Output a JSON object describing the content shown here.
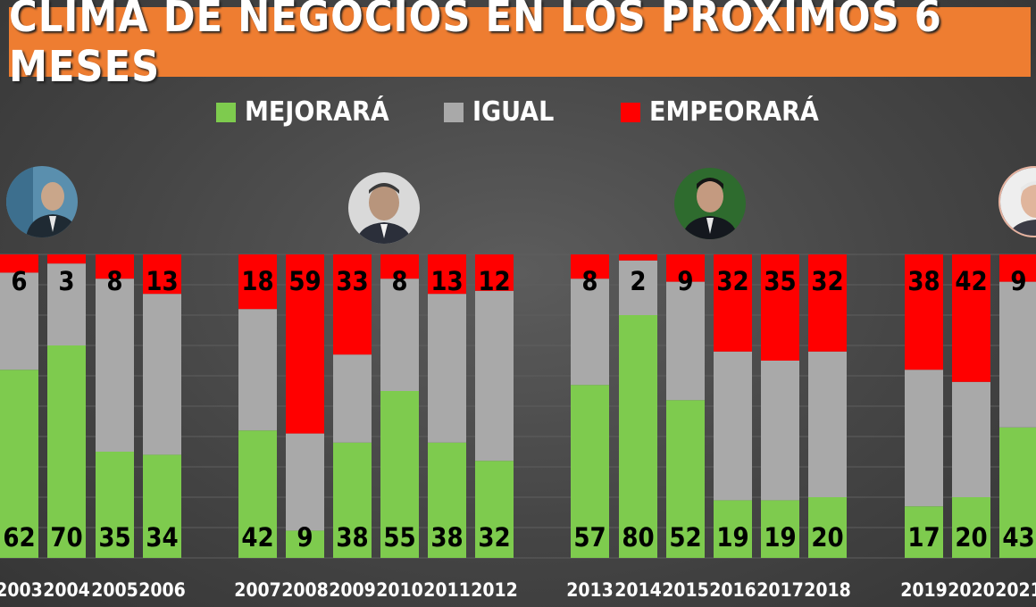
{
  "title": "CLIMA DE NEGOCIOS EN LOS PRÓXIMOS 6 MESES",
  "colors": {
    "mejorara": "#7ecb4e",
    "igual": "#a9a9a9",
    "empeorara": "#ff0000",
    "title_bg": "#ee7d31"
  },
  "chart_data": {
    "type": "bar",
    "stacked": true,
    "legend_position": "top-center",
    "categories": [
      "2003",
      "2004",
      "2005",
      "2006",
      "2007",
      "2008",
      "2009",
      "2010",
      "2011",
      "2012",
      "2013",
      "2014",
      "2015",
      "2016",
      "2017",
      "2018",
      "2019",
      "2020",
      "2021"
    ],
    "series": [
      {
        "name": "MEJORARÁ",
        "values": [
          62,
          70,
          35,
          34,
          42,
          9,
          38,
          55,
          38,
          32,
          57,
          80,
          52,
          19,
          19,
          20,
          17,
          20,
          43
        ]
      },
      {
        "name": "IGUAL",
        "values": [
          32,
          27,
          57,
          53,
          40,
          32,
          29,
          37,
          49,
          56,
          35,
          18,
          39,
          49,
          46,
          48,
          45,
          38,
          48
        ]
      },
      {
        "name": "EMPEORARÁ",
        "values": [
          6,
          3,
          8,
          13,
          18,
          59,
          33,
          8,
          13,
          12,
          8,
          2,
          9,
          32,
          35,
          32,
          38,
          42,
          9
        ]
      }
    ],
    "data_labels": {
      "bottom": [
        "62",
        "70",
        "35",
        "34",
        "42",
        "9",
        "38",
        "55",
        "38",
        "32",
        "57",
        "80",
        "52",
        "19",
        "19",
        "20",
        "17",
        "20",
        "43"
      ],
      "top": [
        "6",
        "3",
        "8",
        "13",
        "18",
        "59",
        "33",
        "8",
        "13",
        "12",
        "8",
        "2",
        "9",
        "32",
        "35",
        "32",
        "38",
        "42",
        "9"
      ]
    },
    "ylim": [
      0,
      100
    ],
    "groups": [
      {
        "years": [
          "2003",
          "2004",
          "2005",
          "2006"
        ],
        "portrait": "portrait-1"
      },
      {
        "years": [
          "2007",
          "2008",
          "2009",
          "2010",
          "2011",
          "2012"
        ],
        "portrait": "portrait-2"
      },
      {
        "years": [
          "2013",
          "2014",
          "2015",
          "2016",
          "2017",
          "2018"
        ],
        "portrait": "portrait-3"
      },
      {
        "years": [
          "2019",
          "2020",
          "2021"
        ],
        "portrait": "portrait-4"
      }
    ]
  }
}
